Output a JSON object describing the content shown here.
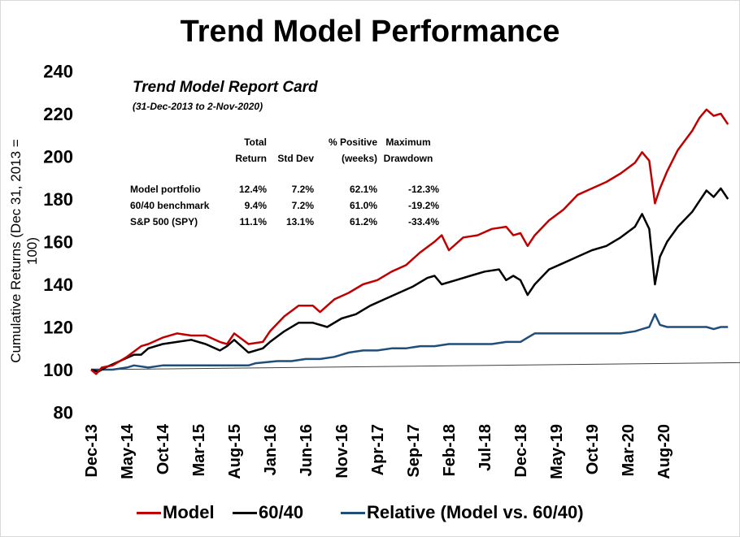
{
  "chart_data": {
    "type": "line",
    "title": "Trend Model Performance",
    "ylabel": "Cumulative Returns (Dec 31, 2013 = 100)",
    "xlabel": "",
    "ylim": [
      80,
      240
    ],
    "yticks": [
      80,
      100,
      120,
      140,
      160,
      180,
      200,
      220,
      240
    ],
    "x_tick_labels": [
      "Dec-13",
      "May-14",
      "Oct-14",
      "Mar-15",
      "Aug-15",
      "Jan-16",
      "Jun-16",
      "Nov-16",
      "Apr-17",
      "Sep-17",
      "Feb-18",
      "Jul-18",
      "Dec-18",
      "May-19",
      "Oct-19",
      "Mar-20",
      "Aug-20"
    ],
    "x_unit": "months since Dec-13",
    "grid": false,
    "legend_position": "bottom",
    "series": [
      {
        "name": "Model",
        "color": "#c00000",
        "points": [
          [
            0,
            100
          ],
          [
            0.7,
            98
          ],
          [
            1.5,
            101
          ],
          [
            3,
            102
          ],
          [
            5,
            106
          ],
          [
            7,
            111
          ],
          [
            8,
            112
          ],
          [
            10,
            115
          ],
          [
            12,
            117
          ],
          [
            14,
            116
          ],
          [
            16,
            116
          ],
          [
            18,
            113
          ],
          [
            19,
            112
          ],
          [
            20,
            117
          ],
          [
            22,
            112
          ],
          [
            24,
            113
          ],
          [
            25,
            118
          ],
          [
            27,
            125
          ],
          [
            29,
            130
          ],
          [
            31,
            130
          ],
          [
            32,
            127
          ],
          [
            34,
            133
          ],
          [
            36,
            136
          ],
          [
            38,
            140
          ],
          [
            40,
            142
          ],
          [
            42,
            146
          ],
          [
            44,
            149
          ],
          [
            46,
            155
          ],
          [
            48,
            160
          ],
          [
            49,
            163
          ],
          [
            50,
            156
          ],
          [
            52,
            162
          ],
          [
            54,
            163
          ],
          [
            56,
            166
          ],
          [
            58,
            167
          ],
          [
            59,
            163
          ],
          [
            60,
            164
          ],
          [
            61,
            158
          ],
          [
            62,
            163
          ],
          [
            64,
            170
          ],
          [
            66,
            175
          ],
          [
            68,
            182
          ],
          [
            70,
            185
          ],
          [
            72,
            188
          ],
          [
            74,
            192
          ],
          [
            76,
            197
          ],
          [
            77,
            202
          ],
          [
            78,
            198
          ],
          [
            78.8,
            178
          ],
          [
            79.5,
            185
          ],
          [
            80.5,
            193
          ],
          [
            82,
            203
          ],
          [
            84,
            212
          ],
          [
            85,
            218
          ],
          [
            86,
            222
          ],
          [
            87,
            219
          ],
          [
            88,
            220
          ],
          [
            89,
            215
          ]
        ]
      },
      {
        "name": "60/40",
        "color": "#000000",
        "points": [
          [
            0,
            100
          ],
          [
            1,
            99
          ],
          [
            2,
            101
          ],
          [
            4,
            104
          ],
          [
            6,
            107
          ],
          [
            7,
            107
          ],
          [
            8,
            110
          ],
          [
            10,
            112
          ],
          [
            12,
            113
          ],
          [
            14,
            114
          ],
          [
            16,
            112
          ],
          [
            18,
            109
          ],
          [
            19,
            111
          ],
          [
            20,
            114
          ],
          [
            22,
            108
          ],
          [
            24,
            110
          ],
          [
            25,
            113
          ],
          [
            27,
            118
          ],
          [
            29,
            122
          ],
          [
            31,
            122
          ],
          [
            33,
            120
          ],
          [
            35,
            124
          ],
          [
            37,
            126
          ],
          [
            39,
            130
          ],
          [
            41,
            133
          ],
          [
            43,
            136
          ],
          [
            45,
            139
          ],
          [
            47,
            143
          ],
          [
            48,
            144
          ],
          [
            49,
            140
          ],
          [
            51,
            142
          ],
          [
            53,
            144
          ],
          [
            55,
            146
          ],
          [
            57,
            147
          ],
          [
            58,
            142
          ],
          [
            59,
            144
          ],
          [
            60,
            142
          ],
          [
            61,
            135
          ],
          [
            62,
            140
          ],
          [
            64,
            147
          ],
          [
            66,
            150
          ],
          [
            68,
            153
          ],
          [
            70,
            156
          ],
          [
            72,
            158
          ],
          [
            74,
            162
          ],
          [
            76,
            167
          ],
          [
            77,
            173
          ],
          [
            78,
            166
          ],
          [
            78.8,
            140
          ],
          [
            79.5,
            153
          ],
          [
            80.5,
            160
          ],
          [
            82,
            167
          ],
          [
            84,
            174
          ],
          [
            85,
            179
          ],
          [
            86,
            184
          ],
          [
            87,
            181
          ],
          [
            88,
            185
          ],
          [
            89,
            180
          ]
        ]
      },
      {
        "name": "Relative (Model vs. 60/40)",
        "color": "#1f4e79",
        "points": [
          [
            0,
            100
          ],
          [
            3,
            100
          ],
          [
            5,
            101
          ],
          [
            6,
            102
          ],
          [
            8,
            101
          ],
          [
            10,
            102
          ],
          [
            14,
            102
          ],
          [
            18,
            102
          ],
          [
            22,
            102
          ],
          [
            23,
            103
          ],
          [
            26,
            104
          ],
          [
            28,
            104
          ],
          [
            30,
            105
          ],
          [
            32,
            105
          ],
          [
            34,
            106
          ],
          [
            36,
            108
          ],
          [
            38,
            109
          ],
          [
            40,
            109
          ],
          [
            42,
            110
          ],
          [
            44,
            110
          ],
          [
            46,
            111
          ],
          [
            48,
            111
          ],
          [
            50,
            112
          ],
          [
            52,
            112
          ],
          [
            54,
            112
          ],
          [
            56,
            112
          ],
          [
            58,
            113
          ],
          [
            60,
            113
          ],
          [
            61,
            115
          ],
          [
            62,
            117
          ],
          [
            64,
            117
          ],
          [
            66,
            117
          ],
          [
            68,
            117
          ],
          [
            70,
            117
          ],
          [
            72,
            117
          ],
          [
            74,
            117
          ],
          [
            76,
            118
          ],
          [
            77,
            119
          ],
          [
            78,
            120
          ],
          [
            78.8,
            126
          ],
          [
            79.5,
            121
          ],
          [
            80.5,
            120
          ],
          [
            82,
            120
          ],
          [
            84,
            120
          ],
          [
            86,
            120
          ],
          [
            87,
            119
          ],
          [
            88,
            120
          ],
          [
            89,
            120
          ]
        ]
      }
    ],
    "trend_line": {
      "points": [
        [
          0,
          100
        ],
        [
          91,
          103.3
        ]
      ]
    }
  },
  "report_card": {
    "title": "Trend Model Report Card",
    "subtitle": "(31-Dec-2013 to 2-Nov-2020)",
    "headers": [
      [
        "",
        "Total",
        "",
        "% Positive",
        "Maximum"
      ],
      [
        "",
        "Return",
        "Std Dev",
        "(weeks)",
        "Drawdown"
      ]
    ],
    "rows": [
      [
        "Model portfolio",
        "12.4%",
        "7.2%",
        "62.1%",
        "-12.3%"
      ],
      [
        "60/40 benchmark",
        "9.4%",
        "7.2%",
        "61.0%",
        "-19.2%"
      ],
      [
        "S&P 500 (SPY)",
        "11.1%",
        "13.1%",
        "61.2%",
        "-33.4%"
      ]
    ]
  },
  "legend": {
    "model": "Model",
    "sixty_forty": "60/40",
    "relative": "Relative (Model vs. 60/40)"
  }
}
